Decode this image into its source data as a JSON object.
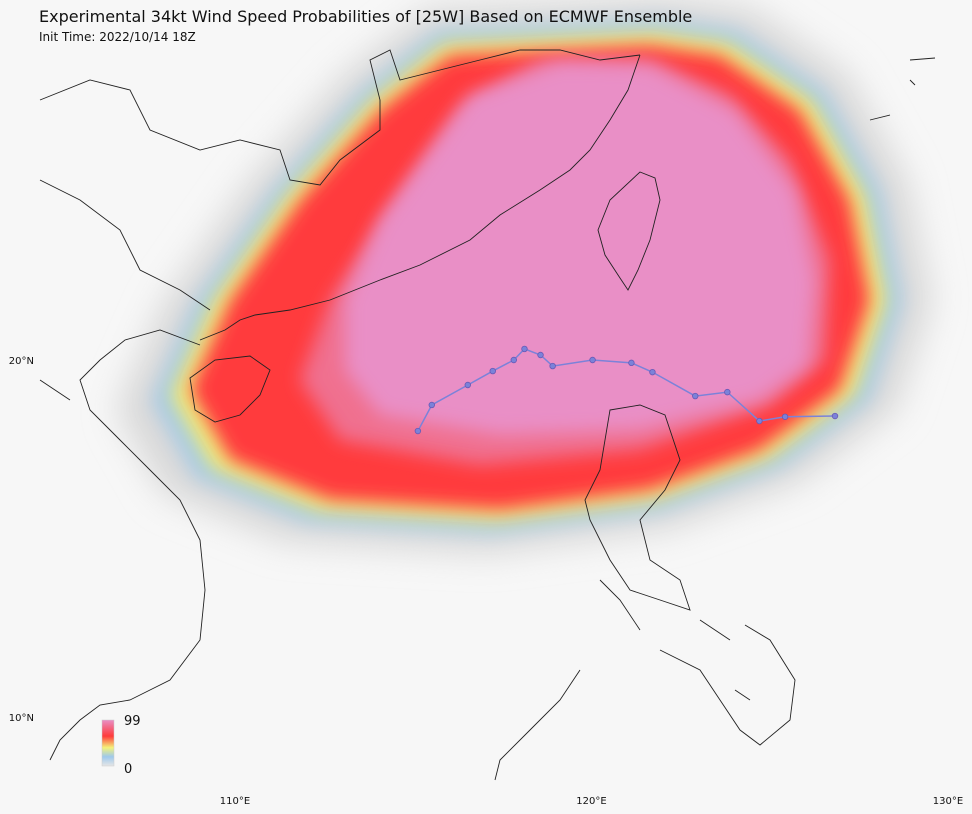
{
  "map": {
    "title": "Experimental 34kt Wind Speed Probabilities of [25W] Based on ECMWF Ensemble",
    "subtitle": "Init Time: 2022/10/14 18Z",
    "lon_ticks": [
      {
        "value": 110,
        "label": "110°E"
      },
      {
        "value": 120,
        "label": "120°E"
      },
      {
        "value": 130,
        "label": "130°E"
      }
    ],
    "lat_ticks": [
      {
        "value": 20,
        "label": "20°N"
      },
      {
        "value": 10,
        "label": "10°N"
      }
    ],
    "colorbar": {
      "min": 0,
      "max": 99
    },
    "track": {
      "color": "#7b82d9",
      "lon": [
        115.13,
        115.52,
        116.53,
        117.23,
        117.82,
        118.12,
        118.57,
        118.91,
        120.03,
        121.12,
        121.71,
        122.91,
        123.81,
        124.71,
        125.43,
        126.83
      ],
      "lat": [
        18.01,
        18.74,
        19.3,
        19.69,
        20.0,
        20.31,
        20.14,
        19.83,
        20.0,
        19.92,
        19.66,
        18.99,
        19.1,
        18.29,
        18.41,
        18.43
      ]
    }
  }
}
